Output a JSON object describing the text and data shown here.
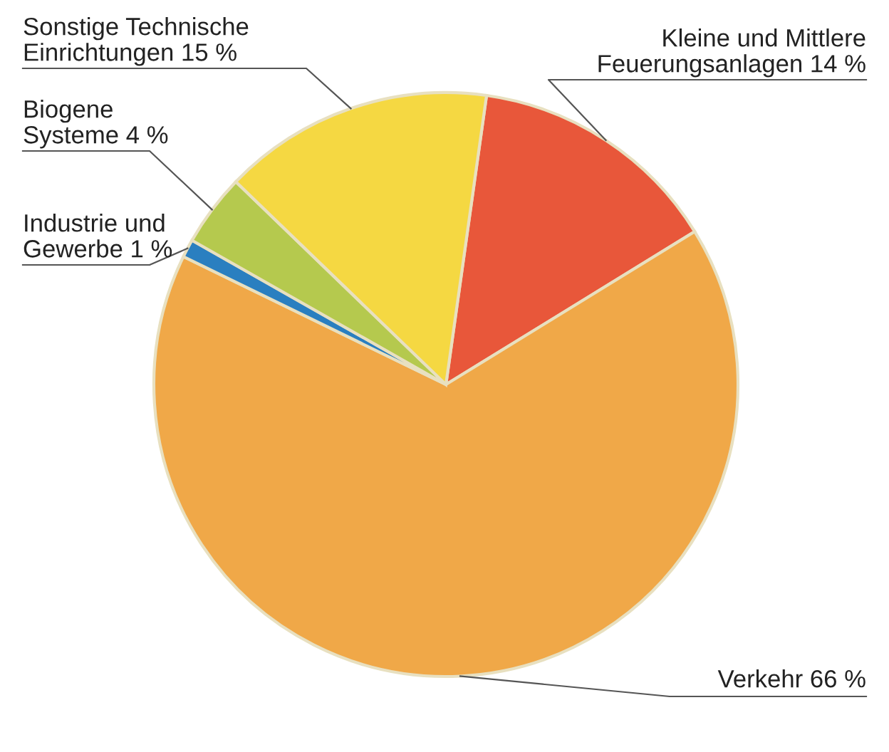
{
  "chart_data": {
    "type": "pie",
    "categories": [
      "Kleine und Mittlere\nFeuerungsanlagen",
      "Verkehr",
      "Industrie und\nGewerbe",
      "Biogene\nSysteme",
      "Sonstige Technische\nEinrichtungen"
    ],
    "values": [
      14,
      66,
      1,
      4,
      15
    ],
    "value_labels": [
      "14 %",
      "66 %",
      "1 %",
      "4 %",
      "15 %"
    ],
    "colors": [
      "#e8573a",
      "#f0a848",
      "#2a7fc0",
      "#b5c94e",
      "#f5d842"
    ]
  }
}
